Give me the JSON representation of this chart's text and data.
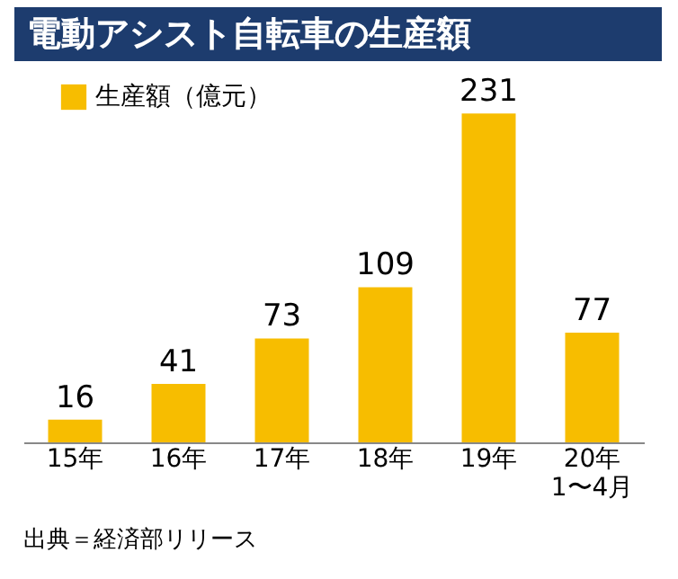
{
  "chart_data": {
    "type": "bar",
    "title": "電動アシスト自転車の生産額",
    "categories": [
      "15年",
      "16年",
      "17年",
      "18年",
      "19年",
      "20年\n1〜4月"
    ],
    "series": [
      {
        "name": "生産額（億元）",
        "color": "#f7bd00",
        "values": [
          16,
          41,
          73,
          109,
          231,
          77
        ]
      }
    ],
    "data_labels": true,
    "legend": "top left",
    "grid": false,
    "annotations": [
      "出典＝経済部リリース"
    ]
  }
}
